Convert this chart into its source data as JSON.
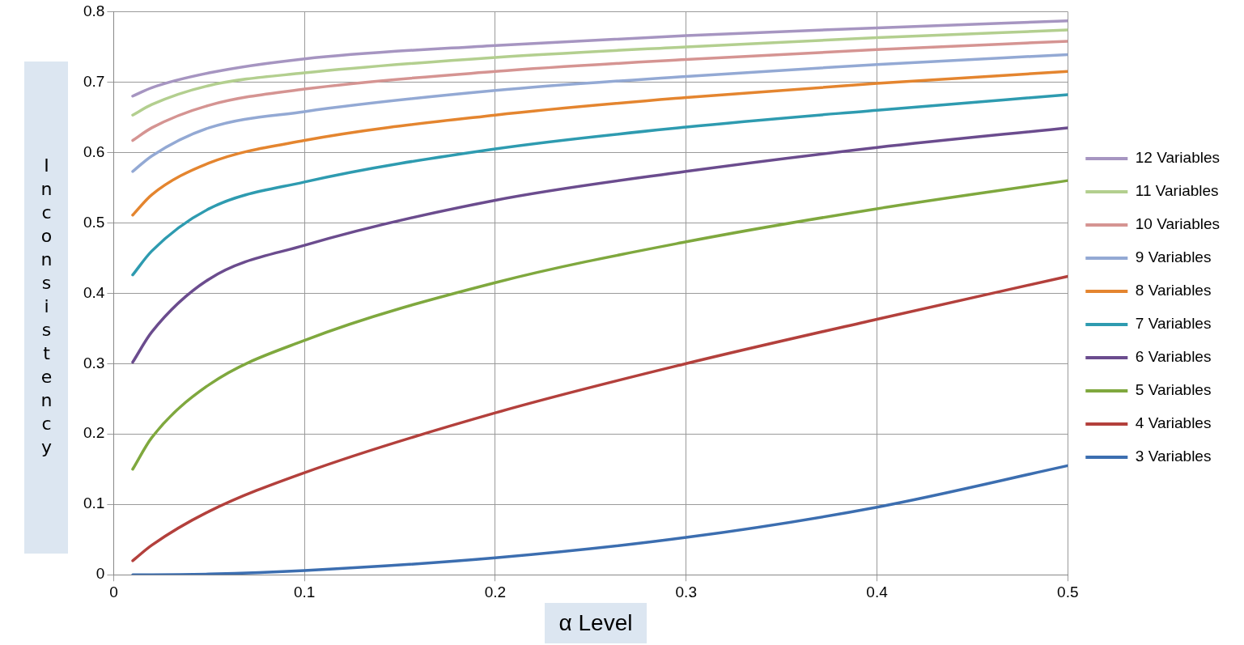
{
  "chart_data": {
    "type": "line",
    "xlabel": "α Level",
    "ylabel": "Inconsistency",
    "x": [
      0.01,
      0.02,
      0.05,
      0.1,
      0.2,
      0.3,
      0.4,
      0.5
    ],
    "xlim": [
      0,
      0.5
    ],
    "xticks": [
      0,
      0.1,
      0.2,
      0.3,
      0.4,
      0.5
    ],
    "ylim": [
      0,
      0.8
    ],
    "yticks": [
      0,
      0.1,
      0.2,
      0.3,
      0.4,
      0.5,
      0.6,
      0.7,
      0.8
    ],
    "grid": true,
    "legend": "right",
    "marker": "none",
    "line_style": "solid",
    "series": [
      {
        "name": "12 Variables",
        "color": "#a695c1",
        "values": [
          0.68,
          0.692,
          0.713,
          0.733,
          0.752,
          0.766,
          0.777,
          0.787
        ]
      },
      {
        "name": "11 Variables",
        "color": "#b3cf8f",
        "values": [
          0.653,
          0.668,
          0.695,
          0.713,
          0.735,
          0.75,
          0.763,
          0.774
        ]
      },
      {
        "name": "10 Variables",
        "color": "#d59492",
        "values": [
          0.617,
          0.635,
          0.667,
          0.69,
          0.715,
          0.732,
          0.746,
          0.758
        ]
      },
      {
        "name": "9 Variables",
        "color": "#93a9d4",
        "values": [
          0.573,
          0.595,
          0.635,
          0.658,
          0.688,
          0.708,
          0.725,
          0.739
        ]
      },
      {
        "name": "8 Variables",
        "color": "#e4852f",
        "values": [
          0.511,
          0.54,
          0.585,
          0.617,
          0.653,
          0.678,
          0.698,
          0.715
        ]
      },
      {
        "name": "7 Variables",
        "color": "#2e9bb0",
        "values": [
          0.426,
          0.46,
          0.52,
          0.558,
          0.605,
          0.636,
          0.66,
          0.682
        ]
      },
      {
        "name": "6 Variables",
        "color": "#6b4c8e",
        "values": [
          0.302,
          0.345,
          0.42,
          0.468,
          0.532,
          0.573,
          0.607,
          0.635
        ]
      },
      {
        "name": "5 Variables",
        "color": "#7fa83e",
        "values": [
          0.15,
          0.195,
          0.27,
          0.333,
          0.415,
          0.473,
          0.52,
          0.56
        ]
      },
      {
        "name": "4 Variables",
        "color": "#b3403c",
        "values": [
          0.02,
          0.042,
          0.09,
          0.145,
          0.23,
          0.3,
          0.363,
          0.424
        ]
      },
      {
        "name": "3 Variables",
        "color": "#3c6eb0",
        "values": [
          0,
          0,
          0.001,
          0.006,
          0.024,
          0.053,
          0.096,
          0.155
        ]
      }
    ]
  }
}
